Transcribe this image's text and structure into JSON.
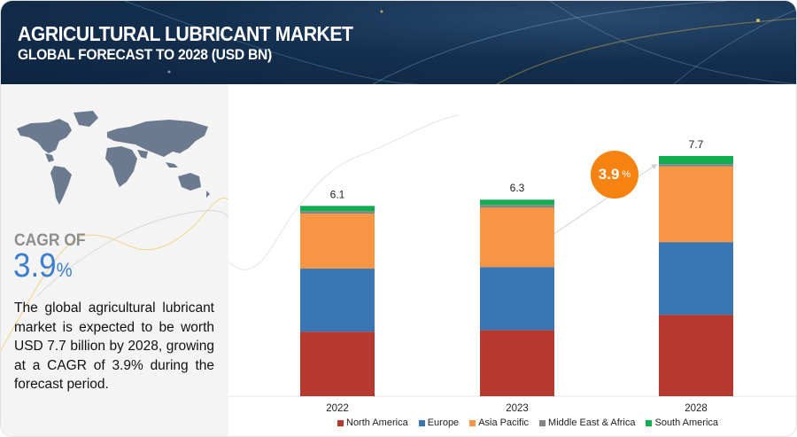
{
  "header": {
    "title": "AGRICULTURAL LUBRICANT MARKET",
    "subtitle": "GLOBAL FORECAST TO 2028 (USD BN)"
  },
  "sidebar": {
    "cagr_label": "CAGR OF",
    "cagr_value": "3.9",
    "cagr_unit": "%",
    "description": "The global agricultural lubricant market is expected to be worth USD 7.7 billion by 2028, growing at a CAGR of 3.9% during the forecast period."
  },
  "badge": {
    "value": "3.9",
    "unit": "%"
  },
  "colors": {
    "North America": "#b5392f",
    "Europe": "#3b76b4",
    "Asia Pacific": "#f99645",
    "Middle East & Africa": "#868686",
    "South America": "#11ad51",
    "badge": "#f68212",
    "cagr": "#3c7fcf"
  },
  "chart_data": {
    "type": "bar",
    "stacked": true,
    "title": "AGRICULTURAL LUBRICANT MARKET — GLOBAL FORECAST TO 2028 (USD BN)",
    "categories": [
      "2022",
      "2023",
      "2028"
    ],
    "totals": [
      "6.1",
      "6.3",
      "7.7"
    ],
    "series": [
      {
        "name": "North America",
        "values": [
          2.07,
          2.12,
          2.61
        ]
      },
      {
        "name": "Europe",
        "values": [
          2.02,
          2.02,
          2.33
        ]
      },
      {
        "name": "Asia Pacific",
        "values": [
          1.76,
          1.9,
          2.42
        ]
      },
      {
        "name": "Middle East & Africa",
        "values": [
          0.08,
          0.09,
          0.08
        ]
      },
      {
        "name": "South America",
        "values": [
          0.17,
          0.17,
          0.26
        ]
      }
    ],
    "ylim": [
      0,
      8
    ],
    "grid": false,
    "legend": "bottom",
    "xlabel": "",
    "ylabel": ""
  }
}
